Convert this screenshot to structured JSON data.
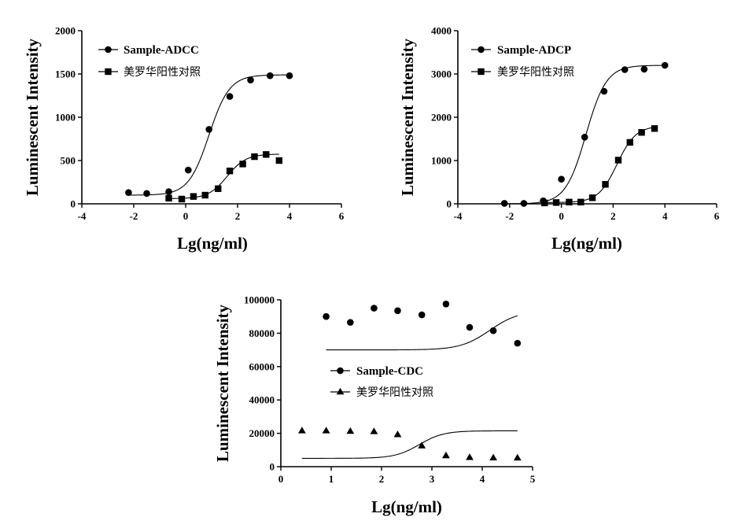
{
  "chart_data": [
    {
      "type": "scatter",
      "id": "adcc",
      "xlabel": "Lg(ng/ml)",
      "ylabel": "Luminescent Intensity",
      "xlim": [
        -4,
        6
      ],
      "ylim": [
        0,
        2000
      ],
      "xticks": [
        -4,
        -2,
        0,
        2,
        4,
        6
      ],
      "yticks": [
        0,
        500,
        1000,
        1500,
        2000
      ],
      "legend_position": "top-left",
      "series": [
        {
          "name": "Sample-ADCC",
          "marker": "circle",
          "x": [
            -2.2,
            -1.5,
            -0.65,
            0.1,
            0.9,
            1.7,
            2.5,
            3.25,
            4.0
          ],
          "y": [
            130,
            120,
            140,
            390,
            860,
            1240,
            1430,
            1480,
            1480
          ],
          "fit": {
            "bottom": 100,
            "top": 1490,
            "ec50": 0.9,
            "hill": 1.1
          }
        },
        {
          "name": "美罗华阳性对照",
          "marker": "square",
          "x": [
            -0.65,
            -0.15,
            0.3,
            0.75,
            1.25,
            1.7,
            2.2,
            2.65,
            3.1,
            3.6
          ],
          "y": [
            65,
            55,
            85,
            100,
            175,
            380,
            460,
            545,
            570,
            500
          ],
          "fit": {
            "bottom": 60,
            "top": 575,
            "ec50": 1.6,
            "hill": 1.2
          }
        }
      ]
    },
    {
      "type": "scatter",
      "id": "adcp",
      "xlabel": "Lg(ng/ml)",
      "ylabel": "Luminescent Intensity",
      "xlim": [
        -4,
        6
      ],
      "ylim": [
        0,
        4000
      ],
      "xticks": [
        -4,
        -2,
        0,
        2,
        4,
        6
      ],
      "yticks": [
        0,
        1000,
        2000,
        3000,
        4000
      ],
      "legend_position": "top-left",
      "series": [
        {
          "name": "Sample-ADCP",
          "marker": "circle",
          "x": [
            -2.2,
            -1.45,
            -0.7,
            0.0,
            0.9,
            1.65,
            2.45,
            3.2,
            4.0
          ],
          "y": [
            10,
            10,
            70,
            570,
            1540,
            2600,
            3100,
            3110,
            3200
          ],
          "fit": {
            "bottom": 0,
            "top": 3200,
            "ec50": 0.95,
            "hill": 1.1
          }
        },
        {
          "name": "美罗华阳性对照",
          "marker": "square",
          "x": [
            -0.65,
            -0.2,
            0.3,
            0.75,
            1.2,
            1.7,
            2.2,
            2.65,
            3.1,
            3.6
          ],
          "y": [
            20,
            30,
            40,
            40,
            140,
            450,
            1010,
            1420,
            1650,
            1740
          ],
          "fit": {
            "bottom": 30,
            "top": 1800,
            "ec50": 2.15,
            "hill": 1.2
          }
        }
      ]
    },
    {
      "type": "scatter",
      "id": "cdc",
      "xlabel": "Lg(ng/ml)",
      "ylabel": "Luminescent Intensity",
      "xlim": [
        0,
        5
      ],
      "ylim": [
        0,
        100000
      ],
      "xticks": [
        0,
        1,
        2,
        3,
        4,
        5
      ],
      "yticks": [
        0,
        20000,
        40000,
        60000,
        80000,
        100000
      ],
      "legend_position": "center",
      "series": [
        {
          "name": "Sample-CDC",
          "marker": "circle",
          "x": [
            0.9,
            1.38,
            1.85,
            2.32,
            2.8,
            3.28,
            3.75,
            4.22,
            4.7
          ],
          "y": [
            90000,
            86500,
            95000,
            93500,
            91000,
            97500,
            83500,
            81500,
            74000
          ],
          "fit": {
            "bottom": 70000,
            "top": 93500,
            "ec50": 4.15,
            "hill": 1.5
          }
        },
        {
          "name": "美罗华阳性对照",
          "marker": "triangle",
          "x": [
            0.42,
            0.9,
            1.38,
            1.85,
            2.32,
            2.8,
            3.28,
            3.75,
            4.22,
            4.7
          ],
          "y": [
            21500,
            21500,
            21200,
            21000,
            19200,
            12500,
            6600,
            5500,
            5300,
            5200
          ],
          "fit": {
            "bottom": 5000,
            "top": 21500,
            "ec50": 2.75,
            "hill": 1.8
          }
        }
      ]
    }
  ]
}
